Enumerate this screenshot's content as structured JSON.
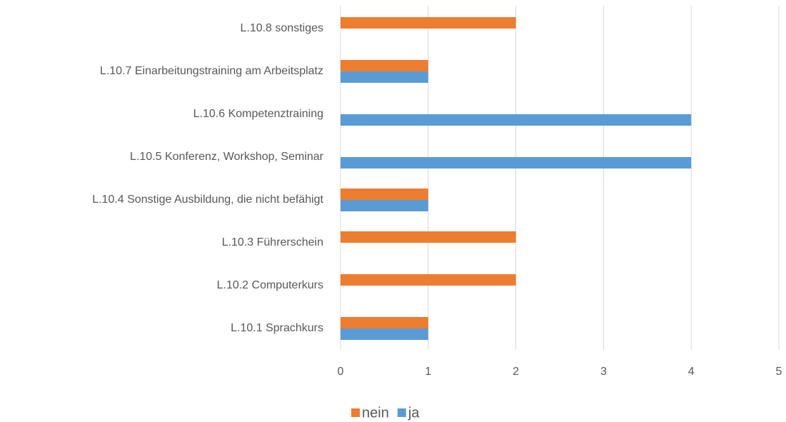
{
  "chart_data": {
    "type": "bar",
    "orientation": "horizontal",
    "categories": [
      "L.10.1 Sprachkurs",
      "L.10.2 Computerkurs",
      "L.10.3 Führerschein",
      "L.10.4 Sonstige Ausbildung, die nicht befähigt",
      "L.10.5 Konferenz, Workshop, Seminar",
      "L.10.6 Kompetenztraining",
      "L.10.7 Einarbeitungstraining am Arbeitsplatz",
      "L.10.8 sonstiges"
    ],
    "series": [
      {
        "name": "nein",
        "color": "#ed7d31",
        "values": [
          1,
          2,
          2,
          1,
          0,
          0,
          1,
          2
        ]
      },
      {
        "name": "ja",
        "color": "#5b9bd5",
        "values": [
          1,
          0,
          0,
          1,
          4,
          4,
          1,
          0
        ]
      }
    ],
    "xlim": [
      0,
      5
    ],
    "xticks": [
      0,
      1,
      2,
      3,
      4,
      5
    ],
    "grid": true,
    "legend": "bottom"
  }
}
